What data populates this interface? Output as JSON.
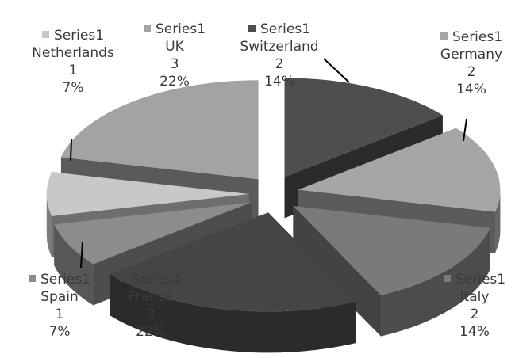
{
  "chart_data": {
    "type": "pie",
    "exploded": true,
    "three_d": true,
    "series_name": "Series1",
    "slices": [
      {
        "name": "Switzerland",
        "value": 2,
        "percent": "14%",
        "color": "#4e4e4e"
      },
      {
        "name": "Germany",
        "value": 2,
        "percent": "14%",
        "color": "#a6a6a6"
      },
      {
        "name": "Italy",
        "value": 2,
        "percent": "14%",
        "color": "#7a7a7a"
      },
      {
        "name": "France",
        "value": 3,
        "percent": "22%",
        "color": "#454545"
      },
      {
        "name": "Spain",
        "value": 1,
        "percent": "7%",
        "color": "#8c8c8c"
      },
      {
        "name": "Netherlands",
        "value": 1,
        "percent": "7%",
        "color": "#c8c8c8"
      },
      {
        "name": "UK",
        "value": 3,
        "percent": "22%",
        "color": "#a3a3a3"
      }
    ]
  }
}
